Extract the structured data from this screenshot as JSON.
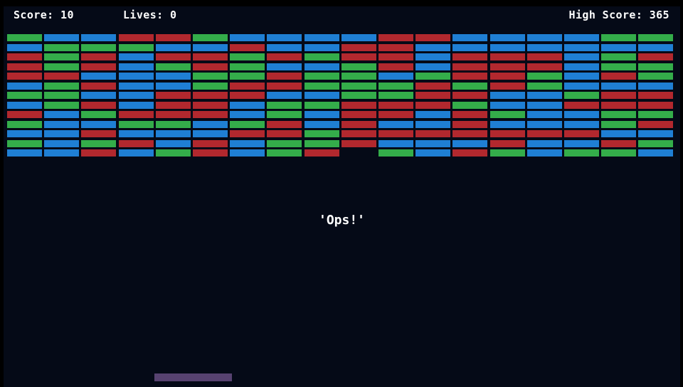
{
  "hud": {
    "score_text": "Score: 10",
    "lives_text": "Lives: 0",
    "high_score_text": "High Score: 365"
  },
  "message": "'Ops!'",
  "colors": {
    "background": "#050a17",
    "paddle": "#574270",
    "r": "#b2282e",
    "g": "#34ad4a",
    "b": "#1f7fd4"
  },
  "bricks": {
    "columns": 18,
    "rows": [
      "gbbrrgbbbbrrbbbbgg",
      "bgggbbrbbrrbbbbbbb",
      "rgrbrrgrgrrbrrrbgr",
      "rgrbgrgbbgrbrrrbgg",
      "rrbbbggrggbgrrgbrg",
      "bgrbbgrrgggrgrgbbb",
      "ggbbrrrbbggrrbbgrr",
      "bgrbrrbggrrrgbbrrr",
      "rbgrrrbgbrrbrgbbgg",
      "gbbggbgrbrbbrbbbgr",
      "bbrbbbrrgrrrrrrrbb",
      "gbgrbrbggrbbbrbbrg",
      "bbrbgrbgr.gbrgbggb"
    ]
  }
}
